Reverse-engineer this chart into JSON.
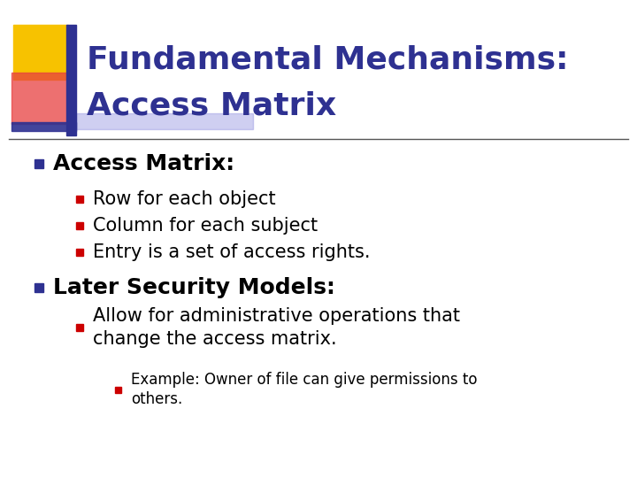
{
  "title_line1": "Fundamental Mechanisms:",
  "title_line2": "Access Matrix",
  "title_color": "#2E3191",
  "bg_color": "#FFFFFF",
  "separator_color": "#555555",
  "content": [
    {
      "level": 1,
      "bullet_color": "#2E3191",
      "text": "Access Matrix:",
      "bold": true,
      "fontsize": 18
    },
    {
      "level": 2,
      "bullet_color": "#CC0000",
      "text": "Row for each object",
      "bold": false,
      "fontsize": 15
    },
    {
      "level": 2,
      "bullet_color": "#CC0000",
      "text": "Column for each subject",
      "bold": false,
      "fontsize": 15
    },
    {
      "level": 2,
      "bullet_color": "#CC0000",
      "text": "Entry is a set of access rights.",
      "bold": false,
      "fontsize": 15
    },
    {
      "level": 1,
      "bullet_color": "#2E3191",
      "text": "Later Security Models:",
      "bold": true,
      "fontsize": 18
    },
    {
      "level": 2,
      "bullet_color": "#CC0000",
      "text": "Allow for administrative operations that\nchange the access matrix.",
      "bold": false,
      "fontsize": 15
    },
    {
      "level": 3,
      "bullet_color": "#CC0000",
      "text": "Example: Owner of file can give permissions to\nothers.",
      "bold": false,
      "fontsize": 12
    }
  ]
}
